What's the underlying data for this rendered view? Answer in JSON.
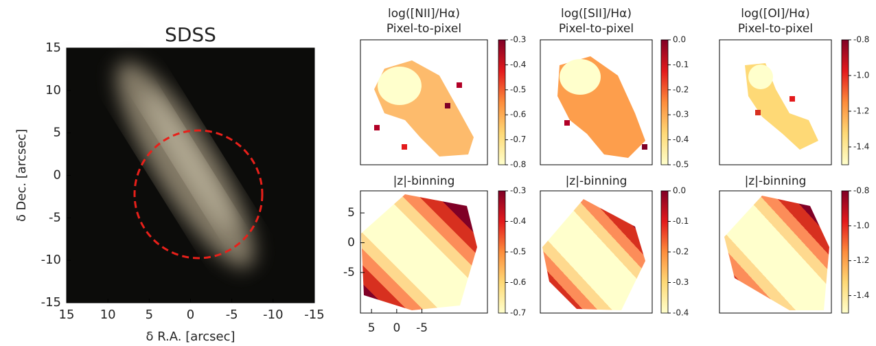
{
  "chart_data": [
    {
      "type": "image",
      "title": "SDSS",
      "xlabel": "δ R.A. [arcsec]",
      "ylabel": "δ Dec. [arcsec]",
      "xlim": [
        15,
        -15
      ],
      "ylim": [
        -15,
        15
      ],
      "xticks": [
        15,
        10,
        5,
        0,
        -5,
        -10,
        -15
      ],
      "yticks": [
        -15,
        -10,
        -5,
        0,
        5,
        10,
        15
      ]
    },
    {
      "type": "map",
      "title": "log([NII]/Hα)",
      "subtitle": "Pixel-to-pixel",
      "clim": [
        -0.8,
        -0.3
      ],
      "cticks": [
        -0.3,
        -0.4,
        -0.5,
        -0.6,
        -0.7,
        -0.8
      ]
    },
    {
      "type": "map",
      "title": "log([SII]/Hα)",
      "subtitle": "Pixel-to-pixel",
      "clim": [
        -0.5,
        0
      ],
      "cticks": [
        {
          "value": 0,
          "label": "0.0"
        },
        -0.1,
        -0.2,
        -0.3,
        -0.4,
        -0.5
      ]
    },
    {
      "type": "map",
      "title": "log([OI]/Hα)",
      "subtitle": "Pixel-to-pixel",
      "clim": [
        -1.5,
        -0.8
      ],
      "cticks": [
        -0.8,
        {
          "value": -1,
          "label": "-1.0"
        },
        -1.2,
        -1.4
      ]
    },
    {
      "type": "map",
      "title": "|z|-binning",
      "clim": [
        -0.7,
        -0.3
      ],
      "cticks": [
        -0.3,
        -0.4,
        -0.5,
        -0.6,
        -0.7
      ],
      "xlim": [
        7.2,
        -18
      ],
      "ylim": [
        -11.8,
        8.7
      ],
      "xticks": [
        5,
        0,
        -5
      ],
      "yticks": [
        -5,
        0,
        5
      ]
    },
    {
      "type": "map",
      "title": "|z|-binning",
      "clim": [
        -0.4,
        0
      ],
      "cticks": [
        {
          "value": 0,
          "label": "0.0"
        },
        -0.1,
        -0.2,
        -0.3,
        -0.4
      ]
    },
    {
      "type": "map",
      "title": "|z|-binning",
      "clim": [
        -1.5,
        -0.8
      ],
      "cticks": [
        -0.8,
        {
          "value": -1,
          "label": "-1.0"
        },
        -1.2,
        -1.4
      ]
    }
  ]
}
